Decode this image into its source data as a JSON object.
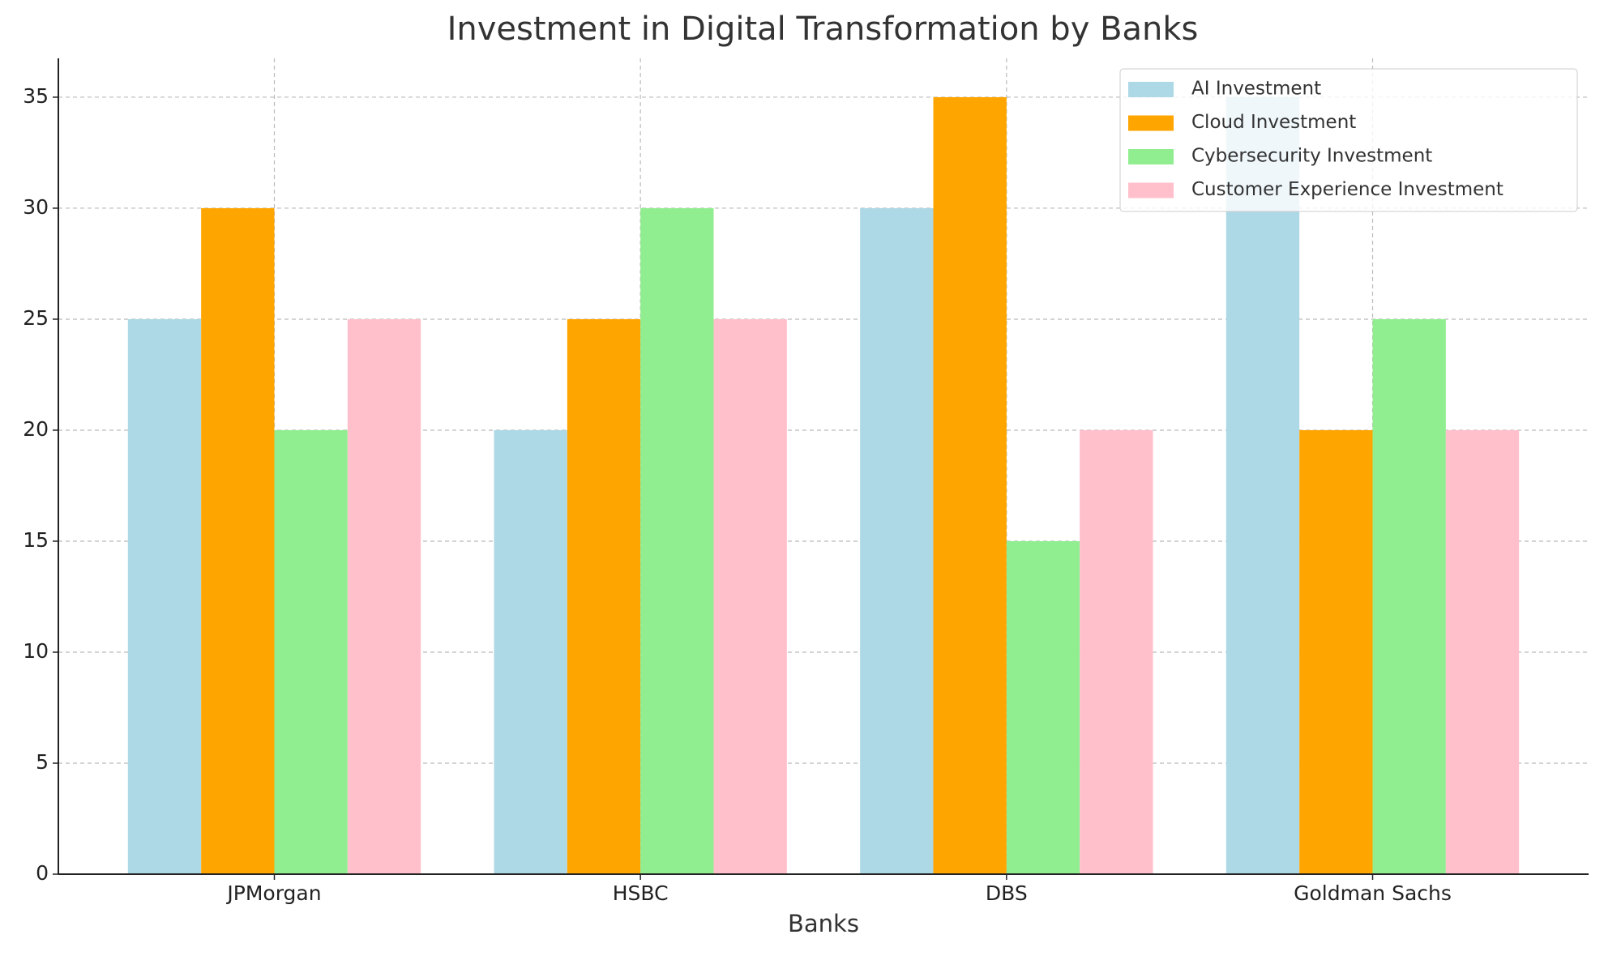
{
  "chart_data": {
    "type": "bar",
    "title": "Investment in Digital Transformation by Banks",
    "x_label": "Banks",
    "categories": [
      "JPMorgan",
      "HSBC",
      "DBS",
      "Goldman Sachs"
    ],
    "series": [
      {
        "name": "AI Investment",
        "color": "#add8e6",
        "values": [
          25,
          20,
          30,
          35
        ]
      },
      {
        "name": "Cloud Investment",
        "color": "#ffa500",
        "values": [
          30,
          25,
          35,
          20
        ]
      },
      {
        "name": "Cybersecurity Investment",
        "color": "#90ee90",
        "values": [
          20,
          30,
          15,
          25
        ]
      },
      {
        "name": "Customer Experience Investment",
        "color": "#ffc0cb",
        "values": [
          25,
          25,
          20,
          20
        ]
      }
    ],
    "ylim": [
      0,
      36.75
    ],
    "yticks": [
      0,
      5,
      10,
      15,
      20,
      25,
      30,
      35
    ],
    "grid": true,
    "legend": "upper right"
  }
}
